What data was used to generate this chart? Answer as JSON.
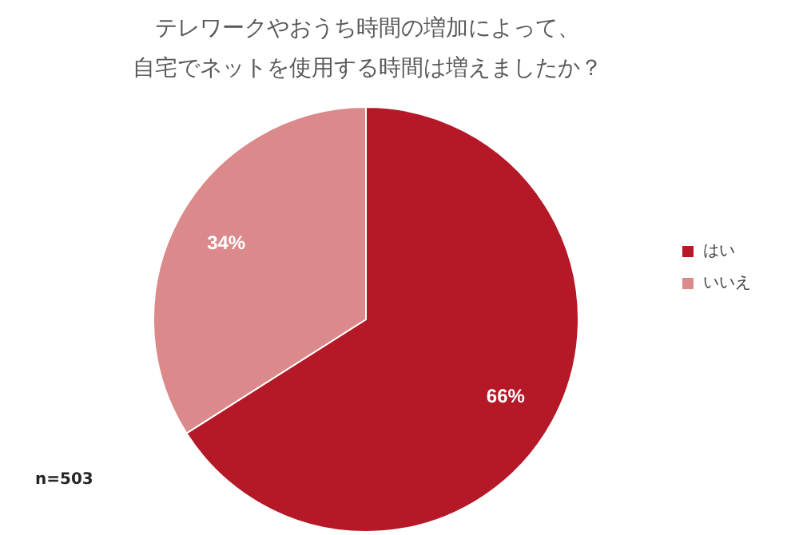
{
  "chart_data": {
    "type": "pie",
    "title": "テレワークやおうち時間の増加によって、自宅でネットを使用する時間は増えましたか？",
    "categories": [
      "はい",
      "いいえ"
    ],
    "values": [
      66,
      34
    ],
    "colors": [
      "#b51827",
      "#db898a"
    ],
    "value_labels": [
      "66%",
      "34%"
    ],
    "legend": "right",
    "annotations": [
      "n=503"
    ]
  }
}
